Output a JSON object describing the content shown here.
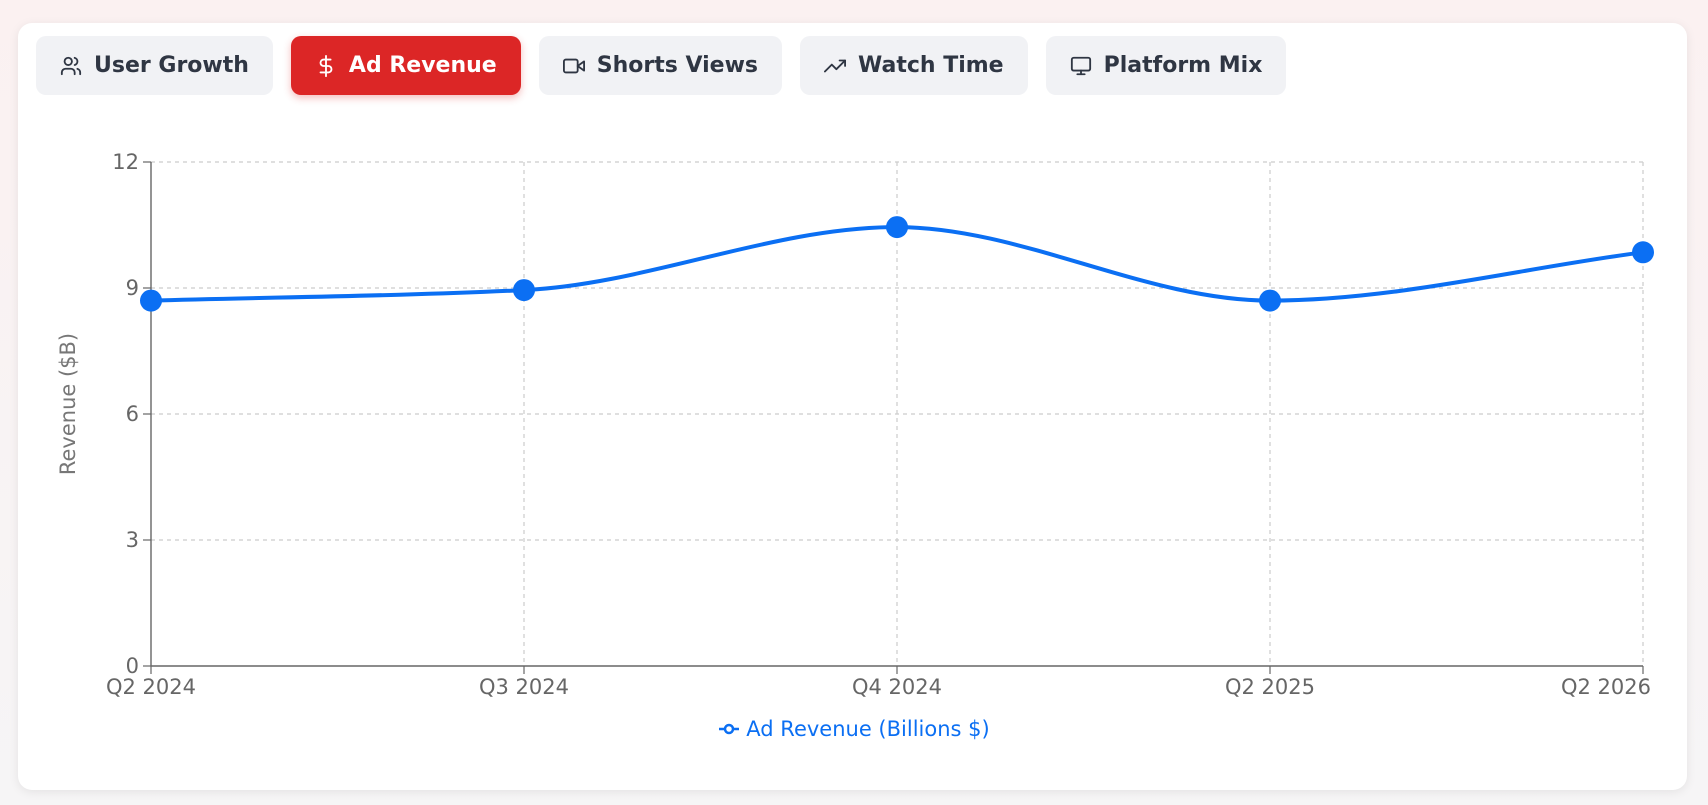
{
  "tabs": [
    {
      "label": "User Growth",
      "icon": "users-icon",
      "active": false
    },
    {
      "label": "Ad Revenue",
      "icon": "dollar-icon",
      "active": true
    },
    {
      "label": "Shorts Views",
      "icon": "video-icon",
      "active": false
    },
    {
      "label": "Watch Time",
      "icon": "trending-up-icon",
      "active": false
    },
    {
      "label": "Platform Mix",
      "icon": "monitor-icon",
      "active": false
    }
  ],
  "colors": {
    "active_tab": "#dc2626",
    "series": "#0b6ff3",
    "grid": "#cccccc"
  },
  "chart_data": {
    "type": "line",
    "categories": [
      "Q2 2024",
      "Q3 2024",
      "Q4 2024",
      "Q2 2025",
      "Q2 2026"
    ],
    "series": [
      {
        "name": "Ad Revenue (Billions $)",
        "values": [
          8.7,
          8.95,
          10.45,
          8.7,
          9.85
        ]
      }
    ],
    "xlabel": "",
    "ylabel": "Revenue ($B)",
    "ylim": [
      0,
      12
    ],
    "yticks": [
      0,
      3,
      6,
      9,
      12
    ],
    "grid": true,
    "legend_position": "bottom",
    "curve": "smooth"
  }
}
